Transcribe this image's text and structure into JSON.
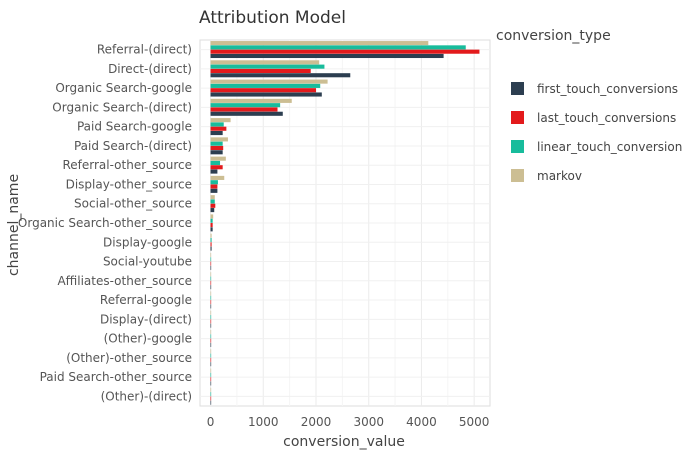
{
  "chart_data": {
    "type": "bar",
    "orientation": "horizontal",
    "title": "Attribution Model",
    "xlabel": "conversion_value",
    "ylabel": "channel_name",
    "xlim": [
      -200,
      5300
    ],
    "xticks": [
      0,
      1000,
      2000,
      3000,
      4000,
      5000
    ],
    "grid": true,
    "legend_title": "conversion_type",
    "legend_position": "right",
    "categories": [
      "Referral-(direct)",
      "Direct-(direct)",
      "Organic Search-google",
      "Organic Search-(direct)",
      "Paid Search-google",
      "Paid Search-(direct)",
      "Referral-other_source",
      "Display-other_source",
      "Social-other_source",
      "Organic Search-other_source",
      "Display-google",
      "Social-youtube",
      "Affiliates-other_source",
      "Referral-google",
      "Display-(direct)",
      "(Other)-google",
      "(Other)-other_source",
      "Paid Search-other_source",
      "(Other)-(direct)"
    ],
    "series": [
      {
        "name": "first_touch_conversions",
        "color": "#2c3e50",
        "values": [
          4420,
          2650,
          2110,
          1370,
          230,
          230,
          130,
          130,
          70,
          40,
          20,
          10,
          10,
          5,
          3,
          2,
          2,
          1,
          1
        ]
      },
      {
        "name": "last_touch_conversions",
        "color": "#e31a1c",
        "values": [
          5100,
          1900,
          2000,
          1270,
          300,
          240,
          230,
          130,
          90,
          40,
          20,
          10,
          10,
          5,
          3,
          2,
          2,
          1,
          1
        ]
      },
      {
        "name": "linear_touch_conversion",
        "color": "#18bc9c",
        "values": [
          4840,
          2160,
          2080,
          1320,
          250,
          230,
          180,
          140,
          80,
          40,
          20,
          10,
          10,
          5,
          3,
          2,
          2,
          1,
          1
        ]
      },
      {
        "name": "markov",
        "color": "#ccbe93",
        "values": [
          4130,
          2060,
          2220,
          1540,
          380,
          330,
          290,
          260,
          80,
          50,
          20,
          10,
          10,
          5,
          3,
          2,
          2,
          1,
          1
        ]
      }
    ]
  }
}
